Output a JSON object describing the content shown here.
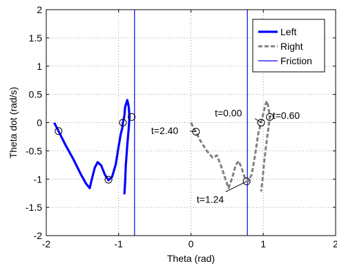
{
  "chart_data": {
    "type": "line",
    "title": "",
    "xlabel": "Theta (rad)",
    "ylabel": "Theta dot (rad/s)",
    "xlim": [
      -2,
      2
    ],
    "ylim": [
      -2,
      2
    ],
    "xticks": [
      -2,
      -1,
      0,
      1,
      2
    ],
    "yticks": [
      -2,
      -1.5,
      -1,
      -0.5,
      0,
      0.5,
      1,
      1.5,
      2
    ],
    "xtick_labels": [
      "-2",
      "-1",
      "0",
      "1",
      "2"
    ],
    "ytick_labels": [
      "-2",
      "-1.5",
      "-1",
      "-0.5",
      "0",
      "0.5",
      "1",
      "1.5",
      "2"
    ],
    "grid": true,
    "grid_style": "dotted",
    "legend_position": "top-right",
    "colors": {
      "left": "#0000ff",
      "right": "#808080",
      "friction": "#0000ff"
    },
    "series": [
      {
        "name": "Left",
        "style": "solid-thick",
        "points": [
          [
            -1.89,
            0.0
          ],
          [
            -1.83,
            -0.15
          ],
          [
            -1.74,
            -0.38
          ],
          [
            -1.62,
            -0.66
          ],
          [
            -1.52,
            -0.92
          ],
          [
            -1.45,
            -1.08
          ],
          [
            -1.4,
            -1.16
          ],
          [
            -1.37,
            -1.0
          ],
          [
            -1.33,
            -0.8
          ],
          [
            -1.29,
            -0.7
          ],
          [
            -1.24,
            -0.76
          ],
          [
            -1.19,
            -0.92
          ],
          [
            -1.14,
            -1.02
          ],
          [
            -1.09,
            -0.96
          ],
          [
            -1.04,
            -0.74
          ],
          [
            -1.0,
            -0.42
          ],
          [
            -0.97,
            -0.2
          ],
          [
            -0.95,
            -0.1
          ],
          [
            -0.94,
            0.0
          ],
          [
            -0.92,
            0.12
          ],
          [
            -0.91,
            0.28
          ],
          [
            -0.89,
            0.36
          ],
          [
            -0.88,
            0.4
          ],
          [
            -0.86,
            0.28
          ],
          [
            -0.85,
            0.1
          ],
          [
            -0.86,
            -0.1
          ],
          [
            -0.88,
            -0.4
          ],
          [
            -0.9,
            -0.75
          ],
          [
            -0.91,
            -1.05
          ],
          [
            -0.92,
            -1.27
          ]
        ]
      },
      {
        "name": "Right",
        "style": "dashed-thick",
        "points": [
          [
            0.0,
            0.0
          ],
          [
            0.05,
            -0.12
          ],
          [
            0.12,
            -0.3
          ],
          [
            0.22,
            -0.5
          ],
          [
            0.3,
            -0.62
          ],
          [
            0.36,
            -0.58
          ],
          [
            0.42,
            -0.78
          ],
          [
            0.49,
            -1.05
          ],
          [
            0.52,
            -1.16
          ],
          [
            0.57,
            -0.98
          ],
          [
            0.62,
            -0.75
          ],
          [
            0.66,
            -0.68
          ],
          [
            0.7,
            -0.8
          ],
          [
            0.74,
            -0.96
          ],
          [
            0.79,
            -1.04
          ],
          [
            0.84,
            -0.92
          ],
          [
            0.89,
            -0.55
          ],
          [
            0.93,
            -0.2
          ],
          [
            0.97,
            0.0
          ],
          [
            1.0,
            0.16
          ],
          [
            1.03,
            0.32
          ],
          [
            1.05,
            0.38
          ],
          [
            1.07,
            0.28
          ],
          [
            1.09,
            0.1
          ],
          [
            1.07,
            -0.1
          ],
          [
            1.04,
            -0.4
          ],
          [
            1.01,
            -0.72
          ],
          [
            0.99,
            -1.0
          ],
          [
            0.97,
            -1.22
          ]
        ]
      }
    ],
    "friction_lines": [
      -0.78,
      0.78
    ],
    "markers": {
      "left": [
        [
          -1.83,
          -0.15
        ],
        [
          -1.14,
          -1.01
        ],
        [
          -0.94,
          0.0
        ],
        [
          -0.82,
          0.1
        ]
      ],
      "right": [
        [
          0.07,
          -0.16
        ],
        [
          0.77,
          -1.04
        ],
        [
          0.97,
          0.0
        ],
        [
          1.09,
          0.1
        ]
      ]
    },
    "annotations": [
      {
        "text": "t=0.00",
        "x": 0.97,
        "y": 0.0,
        "label_x": 0.33,
        "label_y": 0.11,
        "anchor": "start"
      },
      {
        "text": "t=0.60",
        "x": 1.09,
        "y": 0.1,
        "label_x": 1.13,
        "label_y": 0.07,
        "anchor": "start"
      },
      {
        "text": "t=2.40",
        "x": 0.07,
        "y": -0.16,
        "label_x": -0.55,
        "label_y": -0.2,
        "anchor": "start"
      },
      {
        "text": "t=1.24",
        "x": 0.77,
        "y": -1.04,
        "label_x": 0.08,
        "label_y": -1.42,
        "anchor": "start"
      }
    ],
    "legend": [
      {
        "label": "Left",
        "style": "solid-thick"
      },
      {
        "label": "Right",
        "style": "dashed-thick"
      },
      {
        "label": "Friction",
        "style": "solid-thin"
      }
    ]
  }
}
